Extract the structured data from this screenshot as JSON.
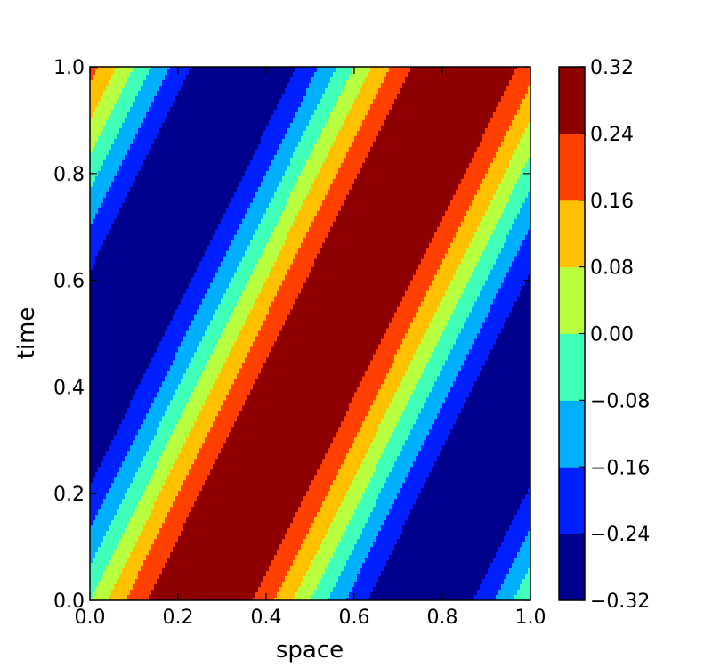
{
  "chart_data": {
    "type": "heatmap",
    "subtype": "filled-contour",
    "title": "",
    "xlabel": "space",
    "ylabel": "time",
    "xlim": [
      0.0,
      1.0
    ],
    "ylim": [
      0.0,
      1.0
    ],
    "xticks": [
      "0.0",
      "0.2",
      "0.4",
      "0.6",
      "0.8",
      "1.0"
    ],
    "yticks": [
      "0.0",
      "0.2",
      "0.4",
      "0.6",
      "0.8",
      "1.0"
    ],
    "field": {
      "form": "travelling-wave",
      "amplitude": 0.33,
      "wavelength_space": 1.0,
      "speed": 0.6,
      "peak_space_at_time_0": 0.25
    },
    "grid": false,
    "colorbar": {
      "levels": [
        -0.32,
        -0.24,
        -0.16,
        -0.08,
        0.0,
        0.08,
        0.16,
        0.24,
        0.32
      ],
      "tick_labels": [
        "−0.32",
        "−0.24",
        "−0.16",
        "−0.08",
        "0.00",
        "0.08",
        "0.16",
        "0.24",
        "0.32"
      ],
      "colors": [
        "#00008f",
        "#0020ff",
        "#00b0ff",
        "#40ffb8",
        "#b8ff40",
        "#ffc000",
        "#ff4000",
        "#8f0000"
      ],
      "placement": "right"
    }
  }
}
